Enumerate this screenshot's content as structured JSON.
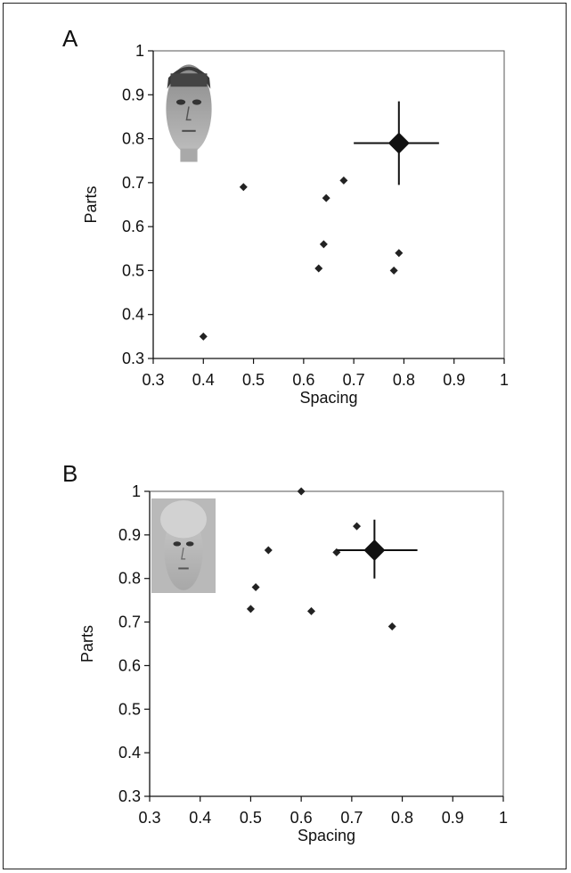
{
  "chart_data": [
    {
      "type": "scatter",
      "panel_label": "A",
      "xlabel": "Spacing",
      "ylabel": "Parts",
      "xlim": [
        0.3,
        1
      ],
      "ylim": [
        0.3,
        1
      ],
      "xticks": [
        "0.3",
        "0.4",
        "0.5",
        "0.6",
        "0.7",
        "0.8",
        "0.9",
        "1"
      ],
      "yticks": [
        "0.3",
        "0.4",
        "0.5",
        "0.6",
        "0.7",
        "0.8",
        "0.9",
        "1"
      ],
      "grid": false,
      "points": [
        {
          "x": 0.4,
          "y": 0.35
        },
        {
          "x": 0.48,
          "y": 0.69
        },
        {
          "x": 0.63,
          "y": 0.505
        },
        {
          "x": 0.64,
          "y": 0.56
        },
        {
          "x": 0.645,
          "y": 0.665
        },
        {
          "x": 0.68,
          "y": 0.705
        },
        {
          "x": 0.78,
          "y": 0.5
        },
        {
          "x": 0.79,
          "y": 0.54
        }
      ],
      "mean": {
        "x": 0.79,
        "y": 0.79,
        "x_err": [
          0.7,
          0.87
        ],
        "y_err": [
          0.695,
          0.885
        ]
      },
      "inset": "male-face-photo"
    },
    {
      "type": "scatter",
      "panel_label": "B",
      "xlabel": "Spacing",
      "ylabel": "Parts",
      "xlim": [
        0.3,
        1
      ],
      "ylim": [
        0.3,
        1
      ],
      "xticks": [
        "0.3",
        "0.4",
        "0.5",
        "0.6",
        "0.7",
        "0.8",
        "0.9",
        "1"
      ],
      "yticks": [
        "0.3",
        "0.4",
        "0.5",
        "0.6",
        "0.7",
        "0.8",
        "0.9",
        "1"
      ],
      "grid": false,
      "points": [
        {
          "x": 0.5,
          "y": 0.73
        },
        {
          "x": 0.51,
          "y": 0.78
        },
        {
          "x": 0.535,
          "y": 0.865
        },
        {
          "x": 0.6,
          "y": 1.0
        },
        {
          "x": 0.62,
          "y": 0.725
        },
        {
          "x": 0.67,
          "y": 0.86
        },
        {
          "x": 0.71,
          "y": 0.92
        },
        {
          "x": 0.78,
          "y": 0.69
        }
      ],
      "mean": {
        "x": 0.745,
        "y": 0.865,
        "x_err": [
          0.67,
          0.83
        ],
        "y_err": [
          0.8,
          0.935
        ]
      },
      "inset": "female-face-photo"
    }
  ]
}
